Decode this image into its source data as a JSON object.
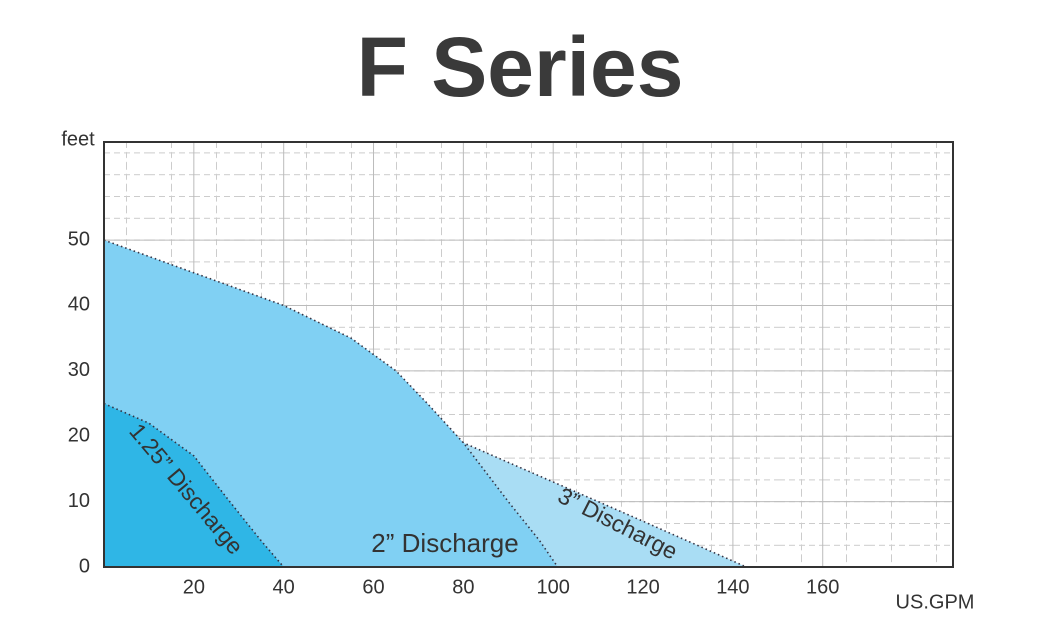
{
  "chart_data": {
    "type": "area",
    "title": "F Series",
    "y_label": "feet",
    "x_label": "US.GPM",
    "xlim": [
      0,
      189
    ],
    "ylim": [
      0,
      65
    ],
    "xticks": [
      20,
      40,
      60,
      80,
      100,
      120,
      140,
      160
    ],
    "yticks": [
      0,
      10,
      20,
      30,
      40,
      50
    ],
    "grid": true,
    "series": [
      {
        "name": "3” Discharge",
        "color": "#a9ddf4",
        "x": [
          0,
          20,
          40,
          60,
          80,
          100,
          120,
          143
        ],
        "values": [
          39,
          35,
          31,
          26,
          19,
          13,
          7,
          0
        ]
      },
      {
        "name": "2” Discharge",
        "color": "#80d0f3",
        "x": [
          0,
          20,
          40,
          55,
          65,
          72,
          80,
          90,
          97,
          101
        ],
        "values": [
          50,
          45,
          40,
          35,
          30,
          25,
          19,
          10,
          4,
          0
        ]
      },
      {
        "name": "1.25” Discharge",
        "color": "#2fb6e6",
        "x": [
          0,
          10,
          20,
          28,
          35,
          40
        ],
        "values": [
          25,
          22,
          17,
          10,
          4,
          0
        ]
      }
    ]
  }
}
